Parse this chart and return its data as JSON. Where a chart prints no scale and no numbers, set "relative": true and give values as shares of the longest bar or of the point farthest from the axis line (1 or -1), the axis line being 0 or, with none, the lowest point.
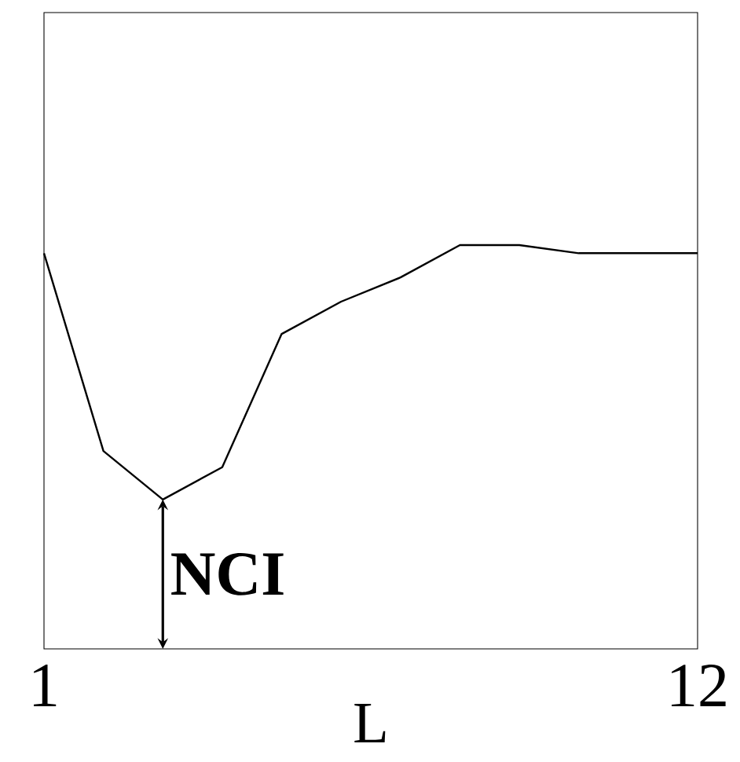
{
  "chart_data": {
    "type": "line",
    "relative": true,
    "xlabel": "L",
    "x": [
      1,
      2,
      3,
      4,
      5,
      6,
      7,
      8,
      9,
      10,
      11,
      12
    ],
    "series": [
      {
        "color": "#000000",
        "values": [
          0.98,
          0.49,
          0.37,
          0.45,
          0.78,
          0.86,
          0.92,
          1.0,
          1.0,
          0.98,
          0.98,
          0.98
        ]
      }
    ],
    "xlim": [
      1,
      12
    ],
    "xticks": [
      1,
      12
    ],
    "annotations": [
      {
        "text": "NCI",
        "x": 3,
        "y": 0.37
      }
    ],
    "grid": false,
    "marker": "none",
    "line_style": "solid"
  }
}
